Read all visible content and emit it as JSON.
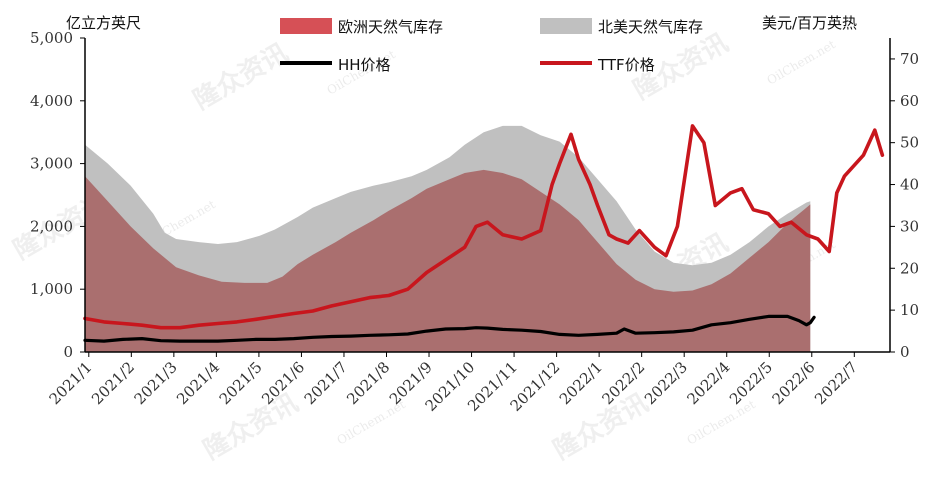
{
  "chart_data": {
    "type": "area+line",
    "left_axis": {
      "unit_label": "亿立方英尺",
      "ylim": [
        0,
        5000
      ],
      "ticks": [
        "0",
        "1,000",
        "2,000",
        "3,000",
        "4,000",
        "5,000"
      ]
    },
    "right_axis": {
      "unit_label": "美元/百万英热",
      "ylim": [
        0,
        75
      ],
      "ticks": [
        "0",
        "10",
        "20",
        "30",
        "40",
        "50",
        "60",
        "70"
      ]
    },
    "x_ticks": [
      "2021/1",
      "2021/2",
      "2021/3",
      "2021/4",
      "2021/5",
      "2021/6",
      "2021/7",
      "2021/8",
      "2021/9",
      "2021/10",
      "2021/11",
      "2021/12",
      "2022/1",
      "2022/2",
      "2022/3",
      "2022/4",
      "2022/5",
      "2022/6",
      "2022/7"
    ],
    "x_range_months": [
      0,
      19.1
    ],
    "series": [
      {
        "name": "北美天然气库存",
        "kind": "area",
        "axis": "left",
        "color": "#c0c0c0",
        "points": [
          [
            0,
            3300
          ],
          [
            0.6,
            3000
          ],
          [
            1.2,
            2650
          ],
          [
            1.8,
            2200
          ],
          [
            2.1,
            1900
          ],
          [
            2.4,
            1800
          ],
          [
            3,
            1750
          ],
          [
            3.5,
            1720
          ],
          [
            4,
            1750
          ],
          [
            4.6,
            1850
          ],
          [
            5,
            1950
          ],
          [
            5.6,
            2150
          ],
          [
            6,
            2300
          ],
          [
            6.6,
            2450
          ],
          [
            7,
            2550
          ],
          [
            7.6,
            2650
          ],
          [
            8,
            2700
          ],
          [
            8.6,
            2800
          ],
          [
            9,
            2900
          ],
          [
            9.6,
            3100
          ],
          [
            10,
            3300
          ],
          [
            10.5,
            3500
          ],
          [
            11,
            3600
          ],
          [
            11.5,
            3600
          ],
          [
            12,
            3450
          ],
          [
            12.5,
            3350
          ],
          [
            13,
            3100
          ],
          [
            13.5,
            2750
          ],
          [
            14,
            2400
          ],
          [
            14.5,
            1950
          ],
          [
            15,
            1600
          ],
          [
            15.5,
            1420
          ],
          [
            16,
            1380
          ],
          [
            16.5,
            1420
          ],
          [
            17,
            1550
          ],
          [
            17.5,
            1750
          ],
          [
            18,
            2000
          ],
          [
            18.5,
            2200
          ],
          [
            19,
            2380
          ],
          [
            19.1,
            2400
          ]
        ]
      },
      {
        "name": "欧洲天然气库存",
        "kind": "area",
        "axis": "left",
        "color": "#aa6f6f",
        "points": [
          [
            0,
            2800
          ],
          [
            0.6,
            2400
          ],
          [
            1.2,
            2000
          ],
          [
            1.8,
            1650
          ],
          [
            2.4,
            1350
          ],
          [
            3,
            1220
          ],
          [
            3.6,
            1120
          ],
          [
            4.2,
            1100
          ],
          [
            4.8,
            1100
          ],
          [
            5.2,
            1200
          ],
          [
            5.6,
            1400
          ],
          [
            6,
            1550
          ],
          [
            6.6,
            1750
          ],
          [
            7,
            1900
          ],
          [
            7.6,
            2100
          ],
          [
            8,
            2250
          ],
          [
            8.6,
            2450
          ],
          [
            9,
            2600
          ],
          [
            9.6,
            2750
          ],
          [
            10,
            2850
          ],
          [
            10.5,
            2900
          ],
          [
            11,
            2850
          ],
          [
            11.5,
            2750
          ],
          [
            12,
            2550
          ],
          [
            12.5,
            2350
          ],
          [
            13,
            2100
          ],
          [
            13.5,
            1750
          ],
          [
            14,
            1400
          ],
          [
            14.5,
            1150
          ],
          [
            15,
            1000
          ],
          [
            15.5,
            960
          ],
          [
            16,
            980
          ],
          [
            16.5,
            1080
          ],
          [
            17,
            1250
          ],
          [
            17.5,
            1500
          ],
          [
            18,
            1750
          ],
          [
            18.5,
            2050
          ],
          [
            19,
            2300
          ],
          [
            19.1,
            2350
          ]
        ]
      },
      {
        "name": "HH价格",
        "kind": "line",
        "axis": "right",
        "color": "#000000",
        "points": [
          [
            0,
            2.8
          ],
          [
            0.5,
            2.6
          ],
          [
            1,
            3.0
          ],
          [
            1.5,
            3.2
          ],
          [
            2,
            2.7
          ],
          [
            2.5,
            2.6
          ],
          [
            3,
            2.6
          ],
          [
            3.5,
            2.6
          ],
          [
            4,
            2.8
          ],
          [
            4.5,
            3.0
          ],
          [
            5,
            3.0
          ],
          [
            5.5,
            3.2
          ],
          [
            6,
            3.5
          ],
          [
            6.5,
            3.7
          ],
          [
            7,
            3.8
          ],
          [
            7.5,
            4.0
          ],
          [
            8,
            4.1
          ],
          [
            8.5,
            4.3
          ],
          [
            9,
            5.0
          ],
          [
            9.5,
            5.5
          ],
          [
            10,
            5.6
          ],
          [
            10.3,
            5.8
          ],
          [
            10.6,
            5.7
          ],
          [
            11,
            5.4
          ],
          [
            11.5,
            5.2
          ],
          [
            12,
            4.9
          ],
          [
            12.5,
            4.2
          ],
          [
            13,
            4.0
          ],
          [
            13.5,
            4.2
          ],
          [
            14,
            4.5
          ],
          [
            14.2,
            5.5
          ],
          [
            14.5,
            4.5
          ],
          [
            15,
            4.6
          ],
          [
            15.5,
            4.8
          ],
          [
            16,
            5.2
          ],
          [
            16.5,
            6.5
          ],
          [
            17,
            7.0
          ],
          [
            17.5,
            7.8
          ],
          [
            18,
            8.5
          ],
          [
            18.5,
            8.5
          ],
          [
            18.8,
            7.5
          ],
          [
            19,
            6.5
          ],
          [
            19.1,
            7.0
          ],
          [
            19.2,
            8.3
          ]
        ]
      },
      {
        "name": "TTF价格",
        "kind": "line",
        "axis": "right",
        "color": "#c8161d",
        "points": [
          [
            0,
            8
          ],
          [
            0.5,
            7.2
          ],
          [
            1,
            6.8
          ],
          [
            1.5,
            6.4
          ],
          [
            2,
            5.8
          ],
          [
            2.5,
            5.8
          ],
          [
            3,
            6.4
          ],
          [
            3.5,
            6.8
          ],
          [
            4,
            7.2
          ],
          [
            4.5,
            7.8
          ],
          [
            5,
            8.5
          ],
          [
            5.5,
            9.2
          ],
          [
            6,
            9.8
          ],
          [
            6.5,
            11
          ],
          [
            7,
            12
          ],
          [
            7.5,
            13
          ],
          [
            8,
            13.5
          ],
          [
            8.5,
            15
          ],
          [
            9,
            19
          ],
          [
            9.5,
            22
          ],
          [
            10,
            25
          ],
          [
            10.3,
            30
          ],
          [
            10.6,
            31
          ],
          [
            11,
            28
          ],
          [
            11.5,
            27
          ],
          [
            12,
            29
          ],
          [
            12.3,
            40
          ],
          [
            12.5,
            45
          ],
          [
            12.8,
            52
          ],
          [
            13,
            46
          ],
          [
            13.3,
            40
          ],
          [
            13.5,
            35
          ],
          [
            13.8,
            28
          ],
          [
            14,
            27
          ],
          [
            14.3,
            26
          ],
          [
            14.6,
            29
          ],
          [
            15,
            25
          ],
          [
            15.3,
            23
          ],
          [
            15.6,
            30
          ],
          [
            16,
            54
          ],
          [
            16.3,
            50
          ],
          [
            16.6,
            35
          ],
          [
            17,
            38
          ],
          [
            17.3,
            39
          ],
          [
            17.6,
            34
          ],
          [
            18,
            33
          ],
          [
            18.3,
            30
          ],
          [
            18.6,
            31
          ],
          [
            19,
            28
          ],
          [
            19.3,
            27
          ],
          [
            19.6,
            24
          ],
          [
            19.8,
            38
          ],
          [
            20,
            42
          ],
          [
            20.5,
            47
          ],
          [
            20.8,
            53
          ],
          [
            21,
            47
          ]
        ]
      }
    ],
    "legend": [
      "欧洲天然气库存",
      "北美天然气库存",
      "HH价格",
      "TTF价格"
    ],
    "legend_placement": "top",
    "grid": false
  },
  "watermark": {
    "text": "隆众资讯",
    "url": "OilChem.net"
  }
}
